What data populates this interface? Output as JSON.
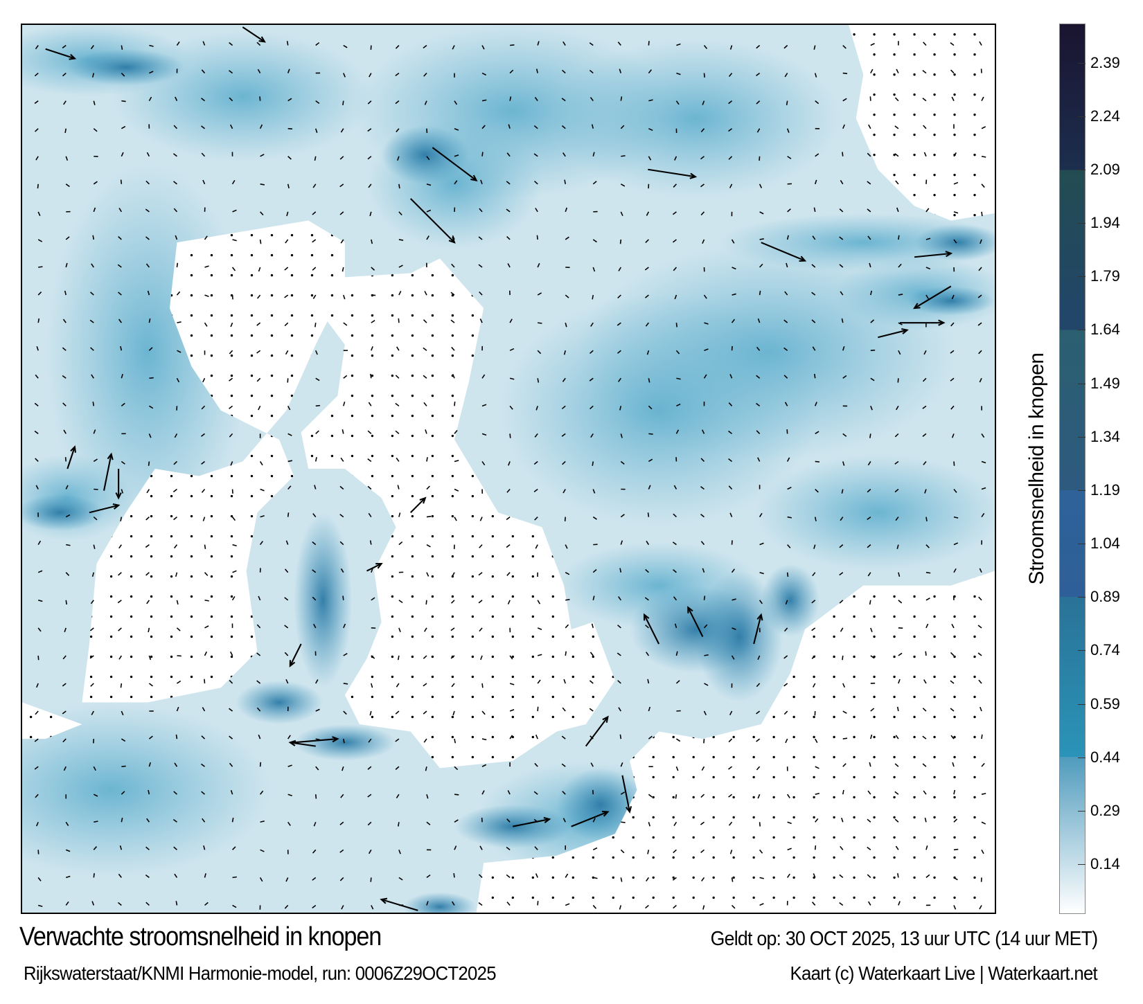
{
  "title": "Verwachte stroomsnelheid in knopen",
  "valid_time": "Geldt op: 30 OCT 2025, 13 uur UTC (14 uur MET)",
  "source": "Rijkswaterstaat/KNMI Harmonie-model, run: 0006Z29OCT2025",
  "credit": "Kaart (c) Waterkaart Live | Waterkaart.net",
  "colorbar": {
    "label": "Stroomsnelheid in knopen",
    "range": [
      0,
      2.5
    ],
    "ticks": [
      "0.14",
      "0.29",
      "0.44",
      "0.59",
      "0.74",
      "0.89",
      "1.04",
      "1.19",
      "1.34",
      "1.49",
      "1.64",
      "1.79",
      "1.94",
      "2.09",
      "2.24",
      "2.39"
    ],
    "bands": [
      {
        "from": 0,
        "to": 0.44,
        "color_from": "#ffffff",
        "color_to": "#4f9bbd"
      },
      {
        "from": 0.44,
        "to": 0.89,
        "color_from": "#2a94b8",
        "color_to": "#2a7297"
      },
      {
        "from": 0.89,
        "to": 1.19,
        "color_from": "#2f5f98",
        "color_to": "#2e6299"
      },
      {
        "from": 1.19,
        "to": 1.64,
        "color_from": "#2d5a7f",
        "color_to": "#2b5f70"
      },
      {
        "from": 1.64,
        "to": 2.09,
        "color_from": "#22456b",
        "color_to": "#234c52"
      },
      {
        "from": 2.09,
        "to": 2.5,
        "color_from": "#1c2e4e",
        "color_to": "#1a1430"
      }
    ]
  },
  "colors": {
    "water_light": "#d6eaf1",
    "water_mid": "#4a9fc2",
    "water_dark": "#2c6f9c",
    "land": "#ffffff"
  }
}
